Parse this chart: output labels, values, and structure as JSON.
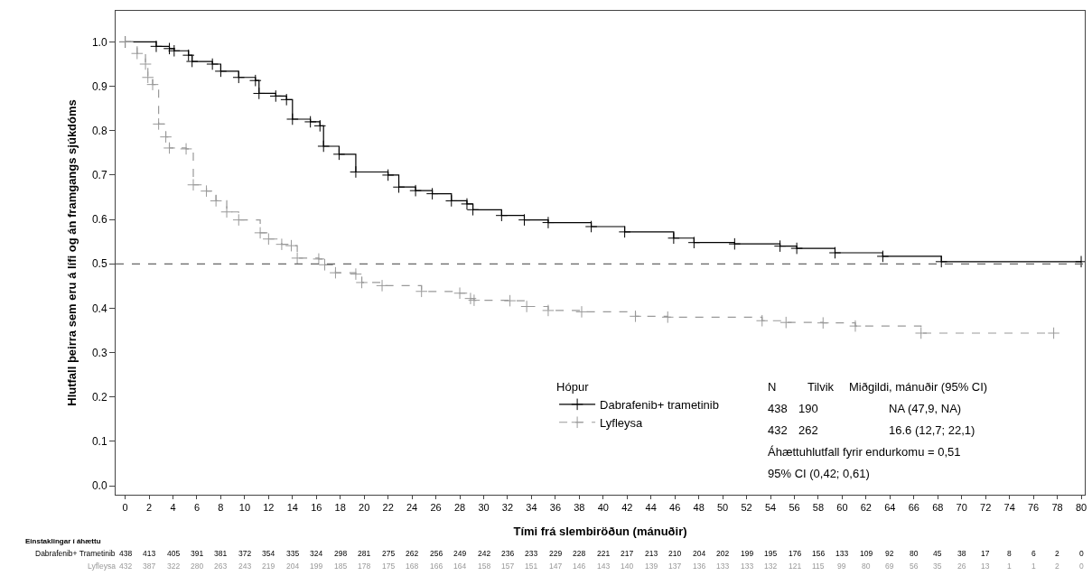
{
  "chart_data": {
    "type": "step",
    "xlabel": "Tími frá slembiröðun (mánuðir)",
    "ylabel": "Hlutfall þeirra sem eru á lífi og án framgangs sjúkdóms",
    "legend_title": "Hópur",
    "series": [
      {
        "name": "Dabrafenib+ trametinib",
        "color": "#000000",
        "line_style": "solid",
        "x": [
          0,
          2.6,
          3.7,
          4.1,
          5.3,
          5.6,
          7.3,
          8.0,
          9.5,
          10.9,
          11.2,
          12.6,
          13.5,
          14.0,
          15.5,
          16.3,
          16.6,
          17.9,
          19.3,
          22.0,
          22.9,
          24.3,
          25.7,
          27.3,
          28.6,
          29.1,
          31.5,
          33.4,
          35.4,
          39.0,
          41.8,
          45.9,
          47.6,
          51.0,
          54.8,
          56.2,
          59.4,
          63.4,
          68.3,
          80.0
        ],
        "values": [
          1.0,
          0.99,
          0.985,
          0.98,
          0.97,
          0.956,
          0.95,
          0.934,
          0.92,
          0.913,
          0.884,
          0.878,
          0.87,
          0.826,
          0.82,
          0.811,
          0.765,
          0.747,
          0.707,
          0.7,
          0.673,
          0.665,
          0.658,
          0.642,
          0.635,
          0.622,
          0.609,
          0.599,
          0.593,
          0.584,
          0.572,
          0.558,
          0.548,
          0.545,
          0.54,
          0.535,
          0.525,
          0.517,
          0.505,
          0.505
        ]
      },
      {
        "name": "Lyfleysa",
        "color": "#999999",
        "line_style": "dashed",
        "x": [
          0,
          1.0,
          1.7,
          1.9,
          2.3,
          2.8,
          3.4,
          3.7,
          5.1,
          5.7,
          6.8,
          7.6,
          8.5,
          9.5,
          11.3,
          12.0,
          13.1,
          13.9,
          14.4,
          16.2,
          16.7,
          17.6,
          19.3,
          19.8,
          21.5,
          24.8,
          28.0,
          28.9,
          29.2,
          32.2,
          33.6,
          35.4,
          38.2,
          42.7,
          45.4,
          53.3,
          55.3,
          58.4,
          61.1,
          66.6,
          77.7
        ],
        "values": [
          1.0,
          0.974,
          0.95,
          0.92,
          0.904,
          0.815,
          0.786,
          0.761,
          0.759,
          0.678,
          0.664,
          0.642,
          0.617,
          0.599,
          0.57,
          0.556,
          0.544,
          0.541,
          0.513,
          0.511,
          0.498,
          0.48,
          0.477,
          0.458,
          0.451,
          0.438,
          0.434,
          0.422,
          0.418,
          0.417,
          0.404,
          0.395,
          0.392,
          0.382,
          0.38,
          0.372,
          0.368,
          0.367,
          0.36,
          0.344,
          0.344
        ]
      }
    ],
    "marker": "cross",
    "legend": "bottom right",
    "xlim": [
      -0.8,
      80.3
    ],
    "xticks": [
      0,
      2,
      4,
      6,
      8,
      10,
      12,
      14,
      16,
      18,
      20,
      22,
      24,
      26,
      28,
      30,
      32,
      34,
      36,
      38,
      40,
      42,
      44,
      46,
      48,
      50,
      52,
      54,
      56,
      58,
      60,
      62,
      64,
      66,
      68,
      70,
      72,
      74,
      76,
      78,
      80
    ],
    "ylim": [
      -0.02,
      1.07
    ],
    "yticks": [
      {
        "value": 0,
        "label": "0.0"
      },
      {
        "value": 0.1,
        "label": "0.1"
      },
      {
        "value": 0.2,
        "label": "0.2"
      },
      {
        "value": 0.3,
        "label": "0.3"
      },
      {
        "value": 0.4,
        "label": "0.4"
      },
      {
        "value": 0.5,
        "label": "0.5"
      },
      {
        "value": 0.6,
        "label": "0.6"
      },
      {
        "value": 0.7,
        "label": "0.7"
      },
      {
        "value": 0.8,
        "label": "0.8"
      },
      {
        "value": 0.9,
        "label": "0.9"
      },
      {
        "value": 1.0,
        "label": "1.0"
      }
    ],
    "ref_lines": [
      {
        "axis": "y",
        "value": 0.5,
        "color": "#666666",
        "line_style": "dashed"
      }
    ],
    "annotations": [
      "N",
      "Tilvik",
      "Miðgildi, mánuðir (95% CI)",
      "438",
      "190",
      "NA (47,9, NA)",
      "432",
      "262",
      "16.6 (12,7; 22,1)",
      "Áhættuhlutfall fyrir endurkomu = 0,51",
      "95% CI (0,42; 0,61)",
      "Einstaklingar í áhættu",
      "Dabrafenib+ Trametinib",
      "Lyfleysa",
      "438 413 405 391 381 372 354 335 324 298 281 275 262 256 249 242 236 233 229 228 221 217 213 210 204 202 199 195 176 156 133 109 92 80 45 38 17 8 6 2 0",
      "432 387 322 280 263 243 219 204 199 185 178 175 168 166 164 158 157 151 147 146 143 140 139 137 136 133 133 132 121 115 99 80 69 56 35 26 13 1 1 2 0"
    ]
  }
}
